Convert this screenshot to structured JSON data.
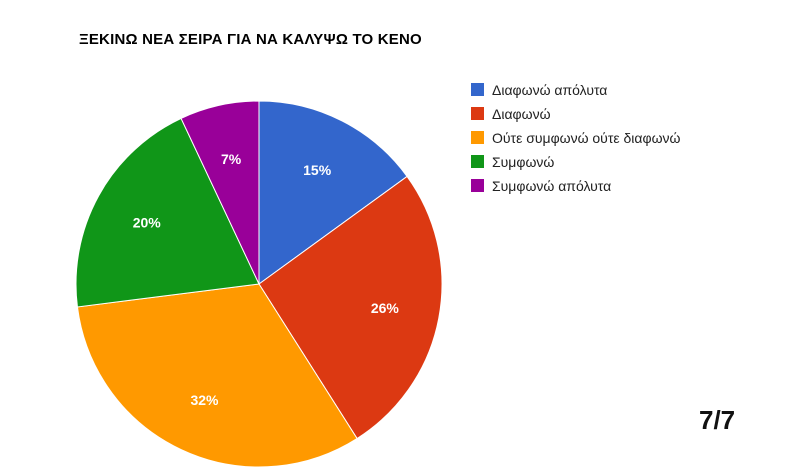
{
  "chart_data": {
    "type": "pie",
    "title": "ΞΕΚΙΝΩ ΝΕΑ ΣΕΙΡΑ ΓΙΑ ΝΑ ΚΑΛΥΨΩ ΤΟ ΚΕΝΟ",
    "slices": [
      {
        "name": "Διαφωνώ απόλυτα",
        "value": 15,
        "label": "15%",
        "color": "#3366cc"
      },
      {
        "name": "Διαφωνώ",
        "value": 26,
        "label": "26%",
        "color": "#dc3912"
      },
      {
        "name": "Ούτε συμφωνώ ούτε διαφωνώ",
        "value": 32,
        "label": "32%",
        "color": "#ff9900"
      },
      {
        "name": "Συμφωνώ",
        "value": 20,
        "label": "20%",
        "color": "#109618"
      },
      {
        "name": "Συμφωνώ απόλυτα",
        "value": 7,
        "label": "7%",
        "color": "#990099"
      }
    ],
    "legend_position": "right"
  },
  "page_indicator": "7/7"
}
